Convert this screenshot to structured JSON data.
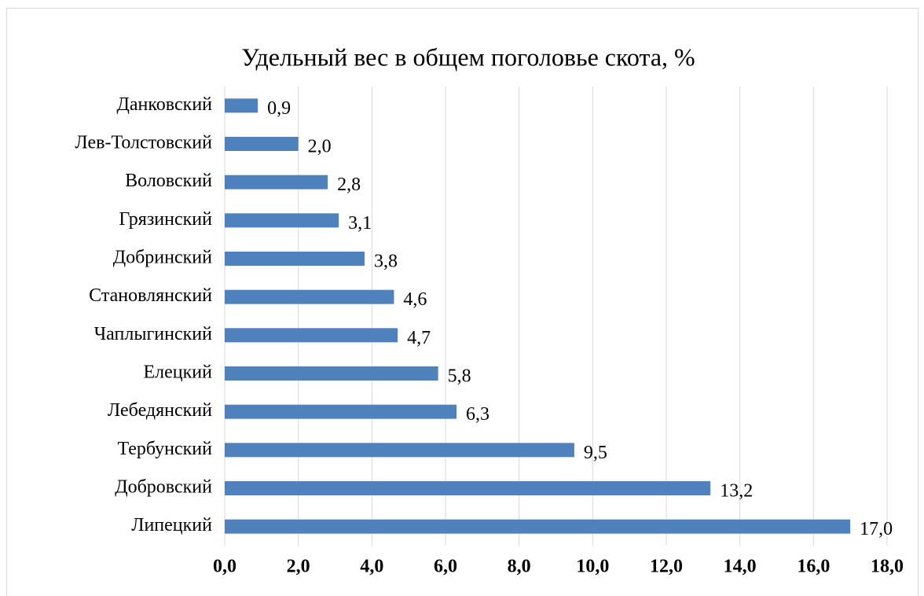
{
  "chart_data": {
    "type": "bar",
    "orientation": "horizontal",
    "title": "Удельный вес в общем поголовье скота, %",
    "categories": [
      "Данковский",
      "Лев-Толстовский",
      "Воловский",
      "Грязинский",
      "Добринский",
      "Становлянский",
      "Чаплыгинский",
      "Елецкий",
      "Лебедянский",
      "Тербунский",
      "Добровский",
      "Липецкий"
    ],
    "values": [
      0.9,
      2.0,
      2.8,
      3.1,
      3.8,
      4.6,
      4.7,
      5.8,
      6.3,
      9.5,
      13.2,
      17.0
    ],
    "value_labels": [
      "0,9",
      "2,0",
      "2,8",
      "3,1",
      "3,8",
      "4,6",
      "4,7",
      "5,8",
      "6,3",
      "9,5",
      "13,2",
      "17,0"
    ],
    "color": "#4f81bd",
    "xlim": [
      0,
      18
    ],
    "xticks": [
      {
        "value": 0,
        "label": "0,0"
      },
      {
        "value": 2,
        "label": "2,0"
      },
      {
        "value": 4,
        "label": "4,0"
      },
      {
        "value": 6,
        "label": "6,0"
      },
      {
        "value": 8,
        "label": "8,0"
      },
      {
        "value": 10,
        "label": "10,0"
      },
      {
        "value": 12,
        "label": "12,0"
      },
      {
        "value": 14,
        "label": "14,0"
      },
      {
        "value": 16,
        "label": "16,0"
      },
      {
        "value": 18,
        "label": "18,0"
      }
    ],
    "grid": true
  }
}
